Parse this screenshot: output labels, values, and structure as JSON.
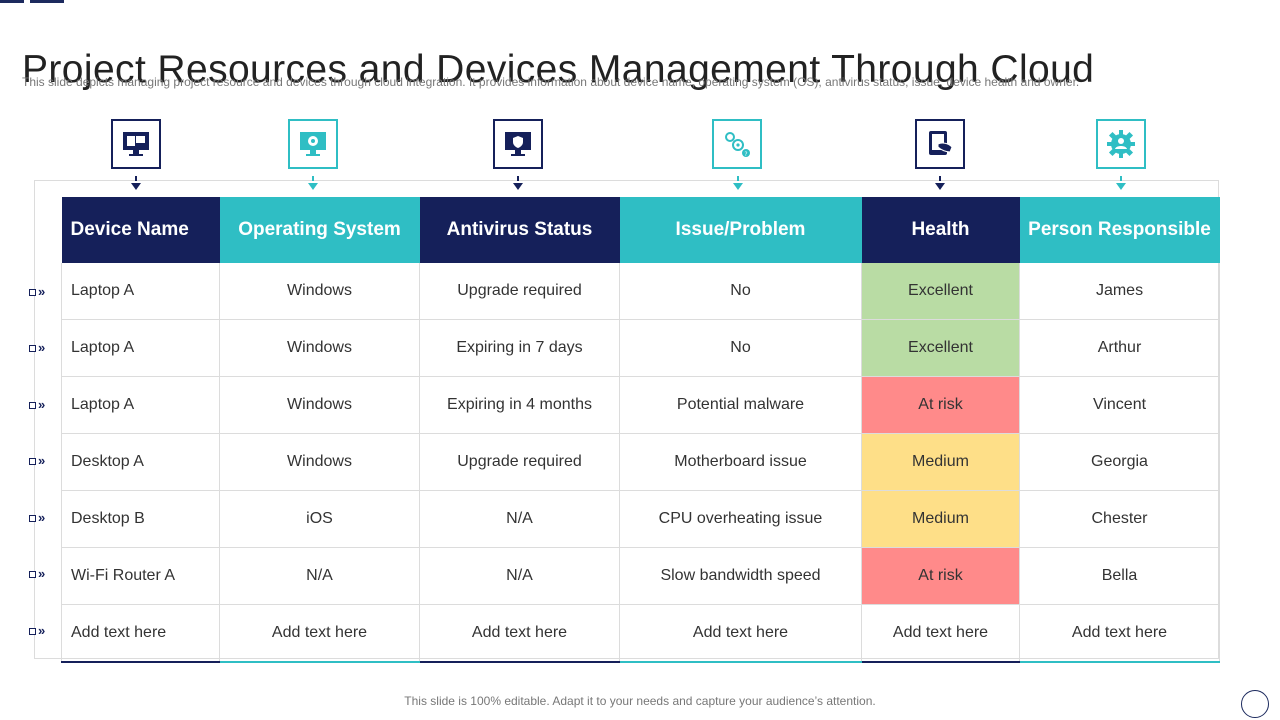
{
  "slide": {
    "title": "Project Resources and Devices Management Through Cloud",
    "subtitle": "This slide depicts managing project resource and devices through cloud integration. It provides information about device name, operating system (OS), antivirus status, issue, device health and owner.",
    "footer": "This slide is 100% editable. Adapt it to your needs and capture your audience’s attention."
  },
  "colors": {
    "navy": "#15205a",
    "teal": "#2fbec4",
    "health_excellent": "#b9dca4",
    "health_at_risk": "#ff8a8a",
    "health_medium": "#fedf88"
  },
  "columns": [
    {
      "label": "Device Name",
      "icon": "computer-monitor-icon"
    },
    {
      "label": "Operating System",
      "icon": "monitor-gear-icon"
    },
    {
      "label": "Antivirus Status",
      "icon": "monitor-shield-icon"
    },
    {
      "label": "Issue/Problem",
      "icon": "gears-question-icon"
    },
    {
      "label": "Health",
      "icon": "tablet-hand-icon"
    },
    {
      "label": "Person Responsible",
      "icon": "gear-person-icon"
    }
  ],
  "rows": [
    {
      "device": "Laptop A",
      "os": "Windows",
      "antivirus": "Upgrade required",
      "issue": "No",
      "health": "Excellent",
      "owner": "James"
    },
    {
      "device": "Laptop A",
      "os": "Windows",
      "antivirus": "Expiring in 7 days",
      "issue": "No",
      "health": "Excellent",
      "owner": "Arthur"
    },
    {
      "device": "Laptop A",
      "os": "Windows",
      "antivirus": "Expiring in 4 months",
      "issue": "Potential malware",
      "health": "At risk",
      "owner": "Vincent"
    },
    {
      "device": "Desktop A",
      "os": "Windows",
      "antivirus": "Upgrade required",
      "issue": "Motherboard issue",
      "health": "Medium",
      "owner": "Georgia"
    },
    {
      "device": "Desktop B",
      "os": "iOS",
      "antivirus": "N/A",
      "issue": "CPU overheating issue",
      "health": "Medium",
      "owner": "Chester"
    },
    {
      "device": "Wi-Fi Router A",
      "os": "N/A",
      "antivirus": "N/A",
      "issue": "Slow bandwidth speed",
      "health": "At risk",
      "owner": "Bella"
    },
    {
      "device": "Add text here",
      "os": "Add text here",
      "antivirus": "Add text here",
      "issue": "Add text here",
      "health": "Add text here",
      "owner": "Add text here"
    }
  ]
}
